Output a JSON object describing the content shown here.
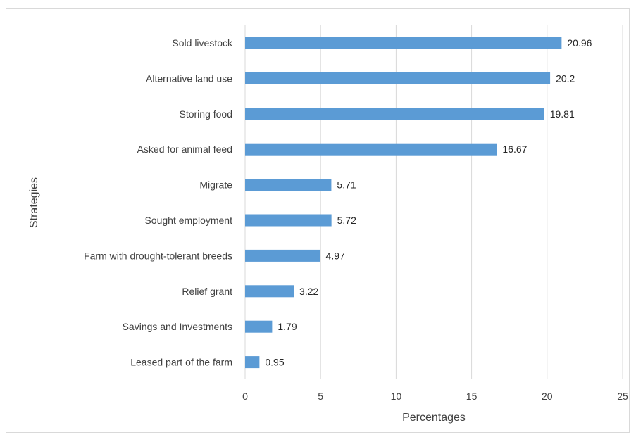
{
  "chart_data": {
    "type": "bar",
    "orientation": "horizontal",
    "categories": [
      "Sold livestock",
      "Alternative land use",
      "Storing food",
      "Asked for animal feed",
      "Migrate",
      "Sought employment",
      "Farm with drought-tolerant breeds",
      "Relief grant",
      "Savings and Investments",
      "Leased part of the farm"
    ],
    "values": [
      20.96,
      20.2,
      19.81,
      16.67,
      5.71,
      5.72,
      4.97,
      3.22,
      1.79,
      0.95
    ],
    "value_labels": [
      "20.96",
      "20.2",
      "19.81",
      "16.67",
      "5.71",
      "5.72",
      "4.97",
      "3.22",
      "1.79",
      "0.95"
    ],
    "xlabel": "Percentages",
    "ylabel": "Strategies",
    "xlim": [
      0,
      25
    ],
    "xticks": [
      0,
      5,
      10,
      15,
      20,
      25
    ],
    "grid": "vertical",
    "bar_color": "#5b9bd5"
  }
}
